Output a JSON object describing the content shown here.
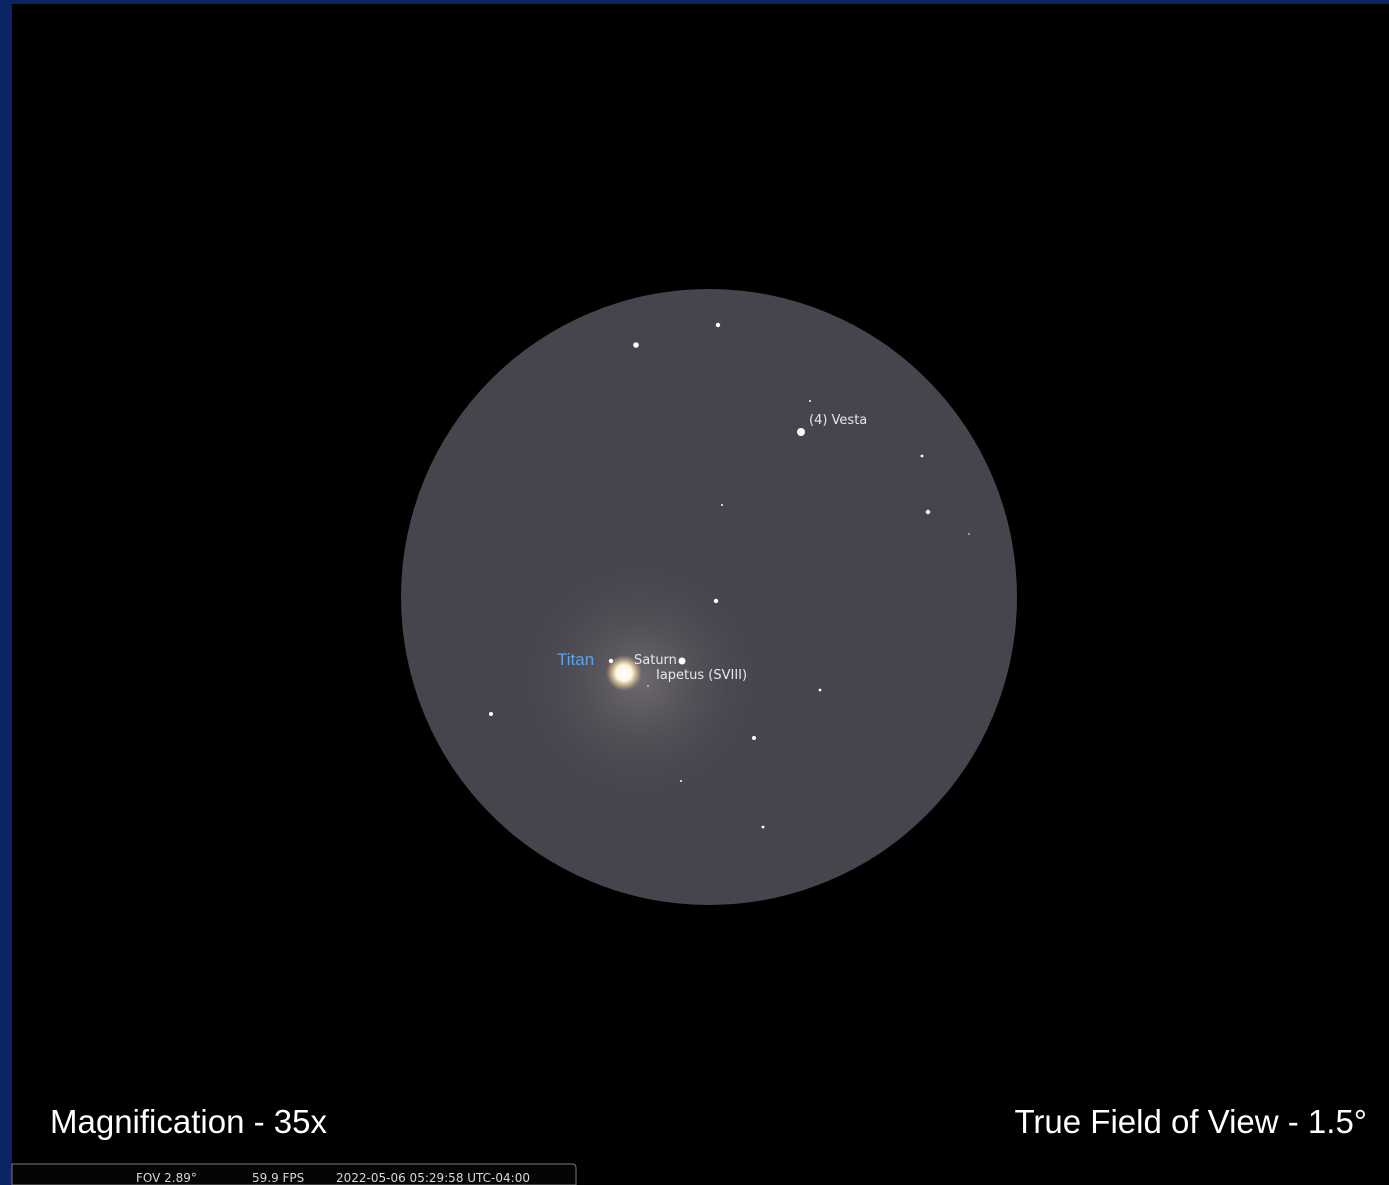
{
  "sky_labels": {
    "titan": "Titan",
    "saturn": "Saturn",
    "iapetus": "Iapetus (SVIII)",
    "vesta": "(4) Vesta"
  },
  "captions": {
    "magnification": "Magnification - 35x",
    "true_fov": "True Field of View - 1.5°"
  },
  "status_bar": {
    "fov": "FOV 2.89°",
    "fps": "59.9 FPS",
    "datetime": "2022-05-06 05:29:58 UTC-04:00"
  }
}
